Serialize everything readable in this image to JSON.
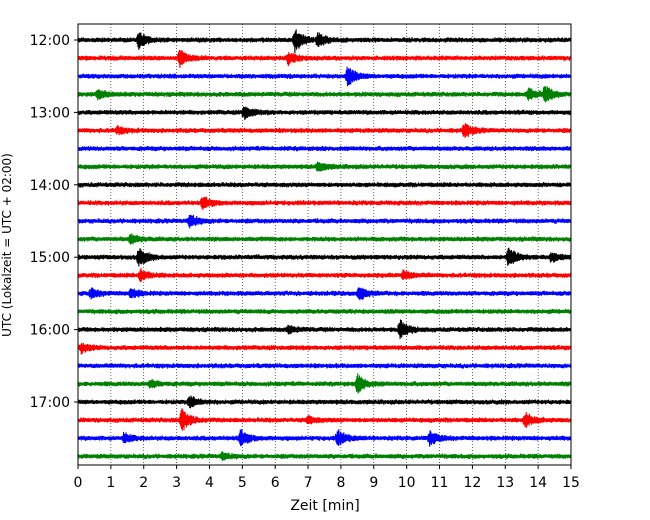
{
  "chart_data": {
    "type": "line",
    "subtype": "helicorder",
    "xlabel": "Zeit  [min]",
    "ylabel": "UTC (Lokalzeit = UTC + 02:00)",
    "xlim": [
      0,
      15
    ],
    "x_ticks": [
      "0",
      "1",
      "2",
      "3",
      "4",
      "5",
      "6",
      "7",
      "8",
      "9",
      "10",
      "11",
      "12",
      "13",
      "14",
      "15"
    ],
    "y_ticks": [
      "12:00",
      "13:00",
      "14:00",
      "15:00",
      "16:00",
      "17:00"
    ],
    "trace_minutes": 15,
    "trace_colors": [
      "#000000",
      "#ff0000",
      "#0000ff",
      "#008000"
    ],
    "vertical_grid": "dotted",
    "traces": [
      {
        "start": "12:00",
        "events": [
          {
            "t": 1.85,
            "amp": 0.7
          },
          {
            "t": 6.6,
            "amp": 1.0
          },
          {
            "t": 7.3,
            "amp": 0.6
          }
        ]
      },
      {
        "start": "12:15",
        "events": [
          {
            "t": 3.1,
            "amp": 0.7
          },
          {
            "t": 6.4,
            "amp": 0.5
          }
        ]
      },
      {
        "start": "12:30",
        "events": [
          {
            "t": 8.2,
            "amp": 0.8
          }
        ]
      },
      {
        "start": "12:45",
        "events": [
          {
            "t": 0.6,
            "amp": 0.4
          },
          {
            "t": 13.7,
            "amp": 0.5
          },
          {
            "t": 14.2,
            "amp": 0.7
          }
        ]
      },
      {
        "start": "13:00",
        "events": [
          {
            "t": 5.05,
            "amp": 0.6
          }
        ]
      },
      {
        "start": "13:15",
        "events": [
          {
            "t": 1.2,
            "amp": 0.3
          },
          {
            "t": 11.75,
            "amp": 0.6
          }
        ]
      },
      {
        "start": "13:30",
        "events": []
      },
      {
        "start": "13:45",
        "events": [
          {
            "t": 7.3,
            "amp": 0.4
          }
        ]
      },
      {
        "start": "14:00",
        "events": []
      },
      {
        "start": "14:15",
        "events": [
          {
            "t": 3.8,
            "amp": 0.5
          }
        ]
      },
      {
        "start": "14:30",
        "events": [
          {
            "t": 3.4,
            "amp": 0.6
          }
        ]
      },
      {
        "start": "14:45",
        "events": [
          {
            "t": 1.6,
            "amp": 0.4
          }
        ]
      },
      {
        "start": "15:00",
        "events": [
          {
            "t": 1.85,
            "amp": 0.8
          },
          {
            "t": 13.1,
            "amp": 0.9
          },
          {
            "t": 14.4,
            "amp": 0.4
          }
        ]
      },
      {
        "start": "15:15",
        "events": [
          {
            "t": 1.9,
            "amp": 0.5
          },
          {
            "t": 9.9,
            "amp": 0.4
          }
        ]
      },
      {
        "start": "15:30",
        "events": [
          {
            "t": 0.4,
            "amp": 0.4
          },
          {
            "t": 1.6,
            "amp": 0.4
          },
          {
            "t": 8.55,
            "amp": 0.6
          }
        ]
      },
      {
        "start": "15:45",
        "events": []
      },
      {
        "start": "16:00",
        "events": [
          {
            "t": 6.4,
            "amp": 0.3
          },
          {
            "t": 9.8,
            "amp": 0.8
          }
        ]
      },
      {
        "start": "16:15",
        "events": [
          {
            "t": 0.1,
            "amp": 0.4
          }
        ]
      },
      {
        "start": "16:30",
        "events": []
      },
      {
        "start": "16:45",
        "events": [
          {
            "t": 2.2,
            "amp": 0.3
          },
          {
            "t": 8.5,
            "amp": 0.8
          }
        ]
      },
      {
        "start": "17:00",
        "events": [
          {
            "t": 3.4,
            "amp": 0.5
          }
        ]
      },
      {
        "start": "17:15",
        "events": [
          {
            "t": 3.15,
            "amp": 1.0
          },
          {
            "t": 7.0,
            "amp": 0.3
          },
          {
            "t": 13.6,
            "amp": 0.6
          }
        ]
      },
      {
        "start": "17:30",
        "events": [
          {
            "t": 1.4,
            "amp": 0.4
          },
          {
            "t": 4.95,
            "amp": 0.7
          },
          {
            "t": 7.9,
            "amp": 0.7
          },
          {
            "t": 10.7,
            "amp": 0.6
          }
        ]
      },
      {
        "start": "17:45",
        "events": [
          {
            "t": 4.4,
            "amp": 0.3
          }
        ]
      }
    ]
  }
}
